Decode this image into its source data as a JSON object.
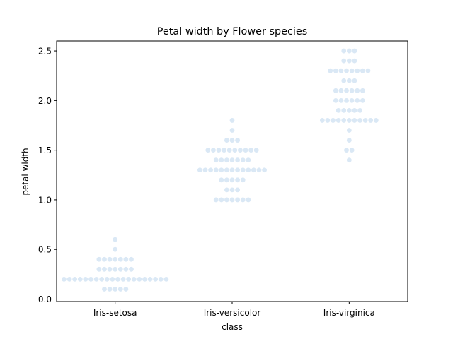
{
  "chart_data": {
    "type": "scatter",
    "style": "swarm",
    "title": "Petal width by Flower species",
    "xlabel": "class",
    "ylabel": "petal width",
    "categories": [
      "Iris-setosa",
      "Iris-versicolor",
      "Iris-virginica"
    ],
    "ylim": [
      -0.025,
      2.6
    ],
    "yticks": [
      0.0,
      0.5,
      1.0,
      1.5,
      2.0,
      2.5
    ],
    "ytick_labels": [
      "0.0",
      "0.5",
      "1.0",
      "1.5",
      "2.0",
      "2.5"
    ],
    "grid": false,
    "point_color": "#dae8f5",
    "series": [
      {
        "category": "Iris-setosa",
        "values": [
          0.1,
          0.1,
          0.1,
          0.1,
          0.1,
          0.2,
          0.2,
          0.2,
          0.2,
          0.2,
          0.2,
          0.2,
          0.2,
          0.2,
          0.2,
          0.2,
          0.2,
          0.2,
          0.2,
          0.2,
          0.2,
          0.2,
          0.2,
          0.2,
          0.2,
          0.3,
          0.3,
          0.3,
          0.3,
          0.3,
          0.3,
          0.3,
          0.4,
          0.4,
          0.4,
          0.4,
          0.4,
          0.4,
          0.4,
          0.5,
          0.6
        ]
      },
      {
        "category": "Iris-versicolor",
        "values": [
          1.0,
          1.0,
          1.0,
          1.0,
          1.0,
          1.0,
          1.0,
          1.1,
          1.1,
          1.1,
          1.2,
          1.2,
          1.2,
          1.2,
          1.2,
          1.3,
          1.3,
          1.3,
          1.3,
          1.3,
          1.3,
          1.3,
          1.3,
          1.3,
          1.3,
          1.3,
          1.3,
          1.3,
          1.4,
          1.4,
          1.4,
          1.4,
          1.4,
          1.4,
          1.4,
          1.5,
          1.5,
          1.5,
          1.5,
          1.5,
          1.5,
          1.5,
          1.5,
          1.5,
          1.5,
          1.6,
          1.6,
          1.6,
          1.7,
          1.8
        ]
      },
      {
        "category": "Iris-virginica",
        "values": [
          1.4,
          1.5,
          1.5,
          1.6,
          1.7,
          1.8,
          1.8,
          1.8,
          1.8,
          1.8,
          1.8,
          1.8,
          1.8,
          1.8,
          1.8,
          1.8,
          1.9,
          1.9,
          1.9,
          1.9,
          1.9,
          2.0,
          2.0,
          2.0,
          2.0,
          2.0,
          2.0,
          2.1,
          2.1,
          2.1,
          2.1,
          2.1,
          2.1,
          2.2,
          2.2,
          2.2,
          2.3,
          2.3,
          2.3,
          2.3,
          2.3,
          2.3,
          2.3,
          2.3,
          2.4,
          2.4,
          2.4,
          2.5,
          2.5,
          2.5
        ]
      }
    ]
  }
}
